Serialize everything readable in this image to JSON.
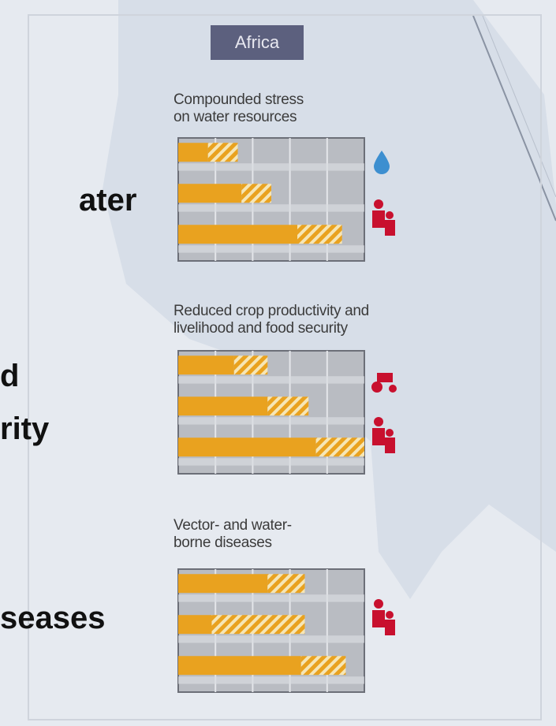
{
  "header": "Africa",
  "side_text": [
    "ater",
    "d",
    "rity",
    "seases"
  ],
  "chart_data": [
    {
      "type": "bar",
      "orientation": "horizontal",
      "title": "Compounded stress\non water resources",
      "xlim": [
        0,
        5
      ],
      "xticks": [
        1,
        2,
        3,
        4
      ],
      "grid": true,
      "series": [
        {
          "color": "#e9a21f",
          "values": [
            0.8,
            1.7,
            3.2
          ]
        },
        {
          "color": "#e9a21f",
          "hatched": true,
          "values": [
            0.8,
            0.8,
            1.2
          ]
        }
      ]
    },
    {
      "type": "bar",
      "orientation": "horizontal",
      "title": "Reduced crop productivity and\nlivelihood and food security",
      "xlim": [
        0,
        5
      ],
      "xticks": [
        1,
        2,
        3,
        4
      ],
      "grid": true,
      "series": [
        {
          "color": "#e9a21f",
          "values": [
            1.5,
            2.4,
            3.7
          ]
        },
        {
          "color": "#e9a21f",
          "hatched": true,
          "values": [
            0.9,
            1.1,
            1.3
          ]
        }
      ]
    },
    {
      "type": "bar",
      "orientation": "horizontal",
      "title": "Vector- and water-\nborne diseases",
      "xlim": [
        0,
        5
      ],
      "xticks": [
        1,
        2,
        3,
        4
      ],
      "grid": true,
      "series": [
        {
          "color": "#e9a21f",
          "values": [
            2.4,
            0.9,
            3.3
          ]
        },
        {
          "color": "#e9a21f",
          "hatched": true,
          "values": [
            1.0,
            2.5,
            1.2
          ]
        }
      ]
    }
  ]
}
